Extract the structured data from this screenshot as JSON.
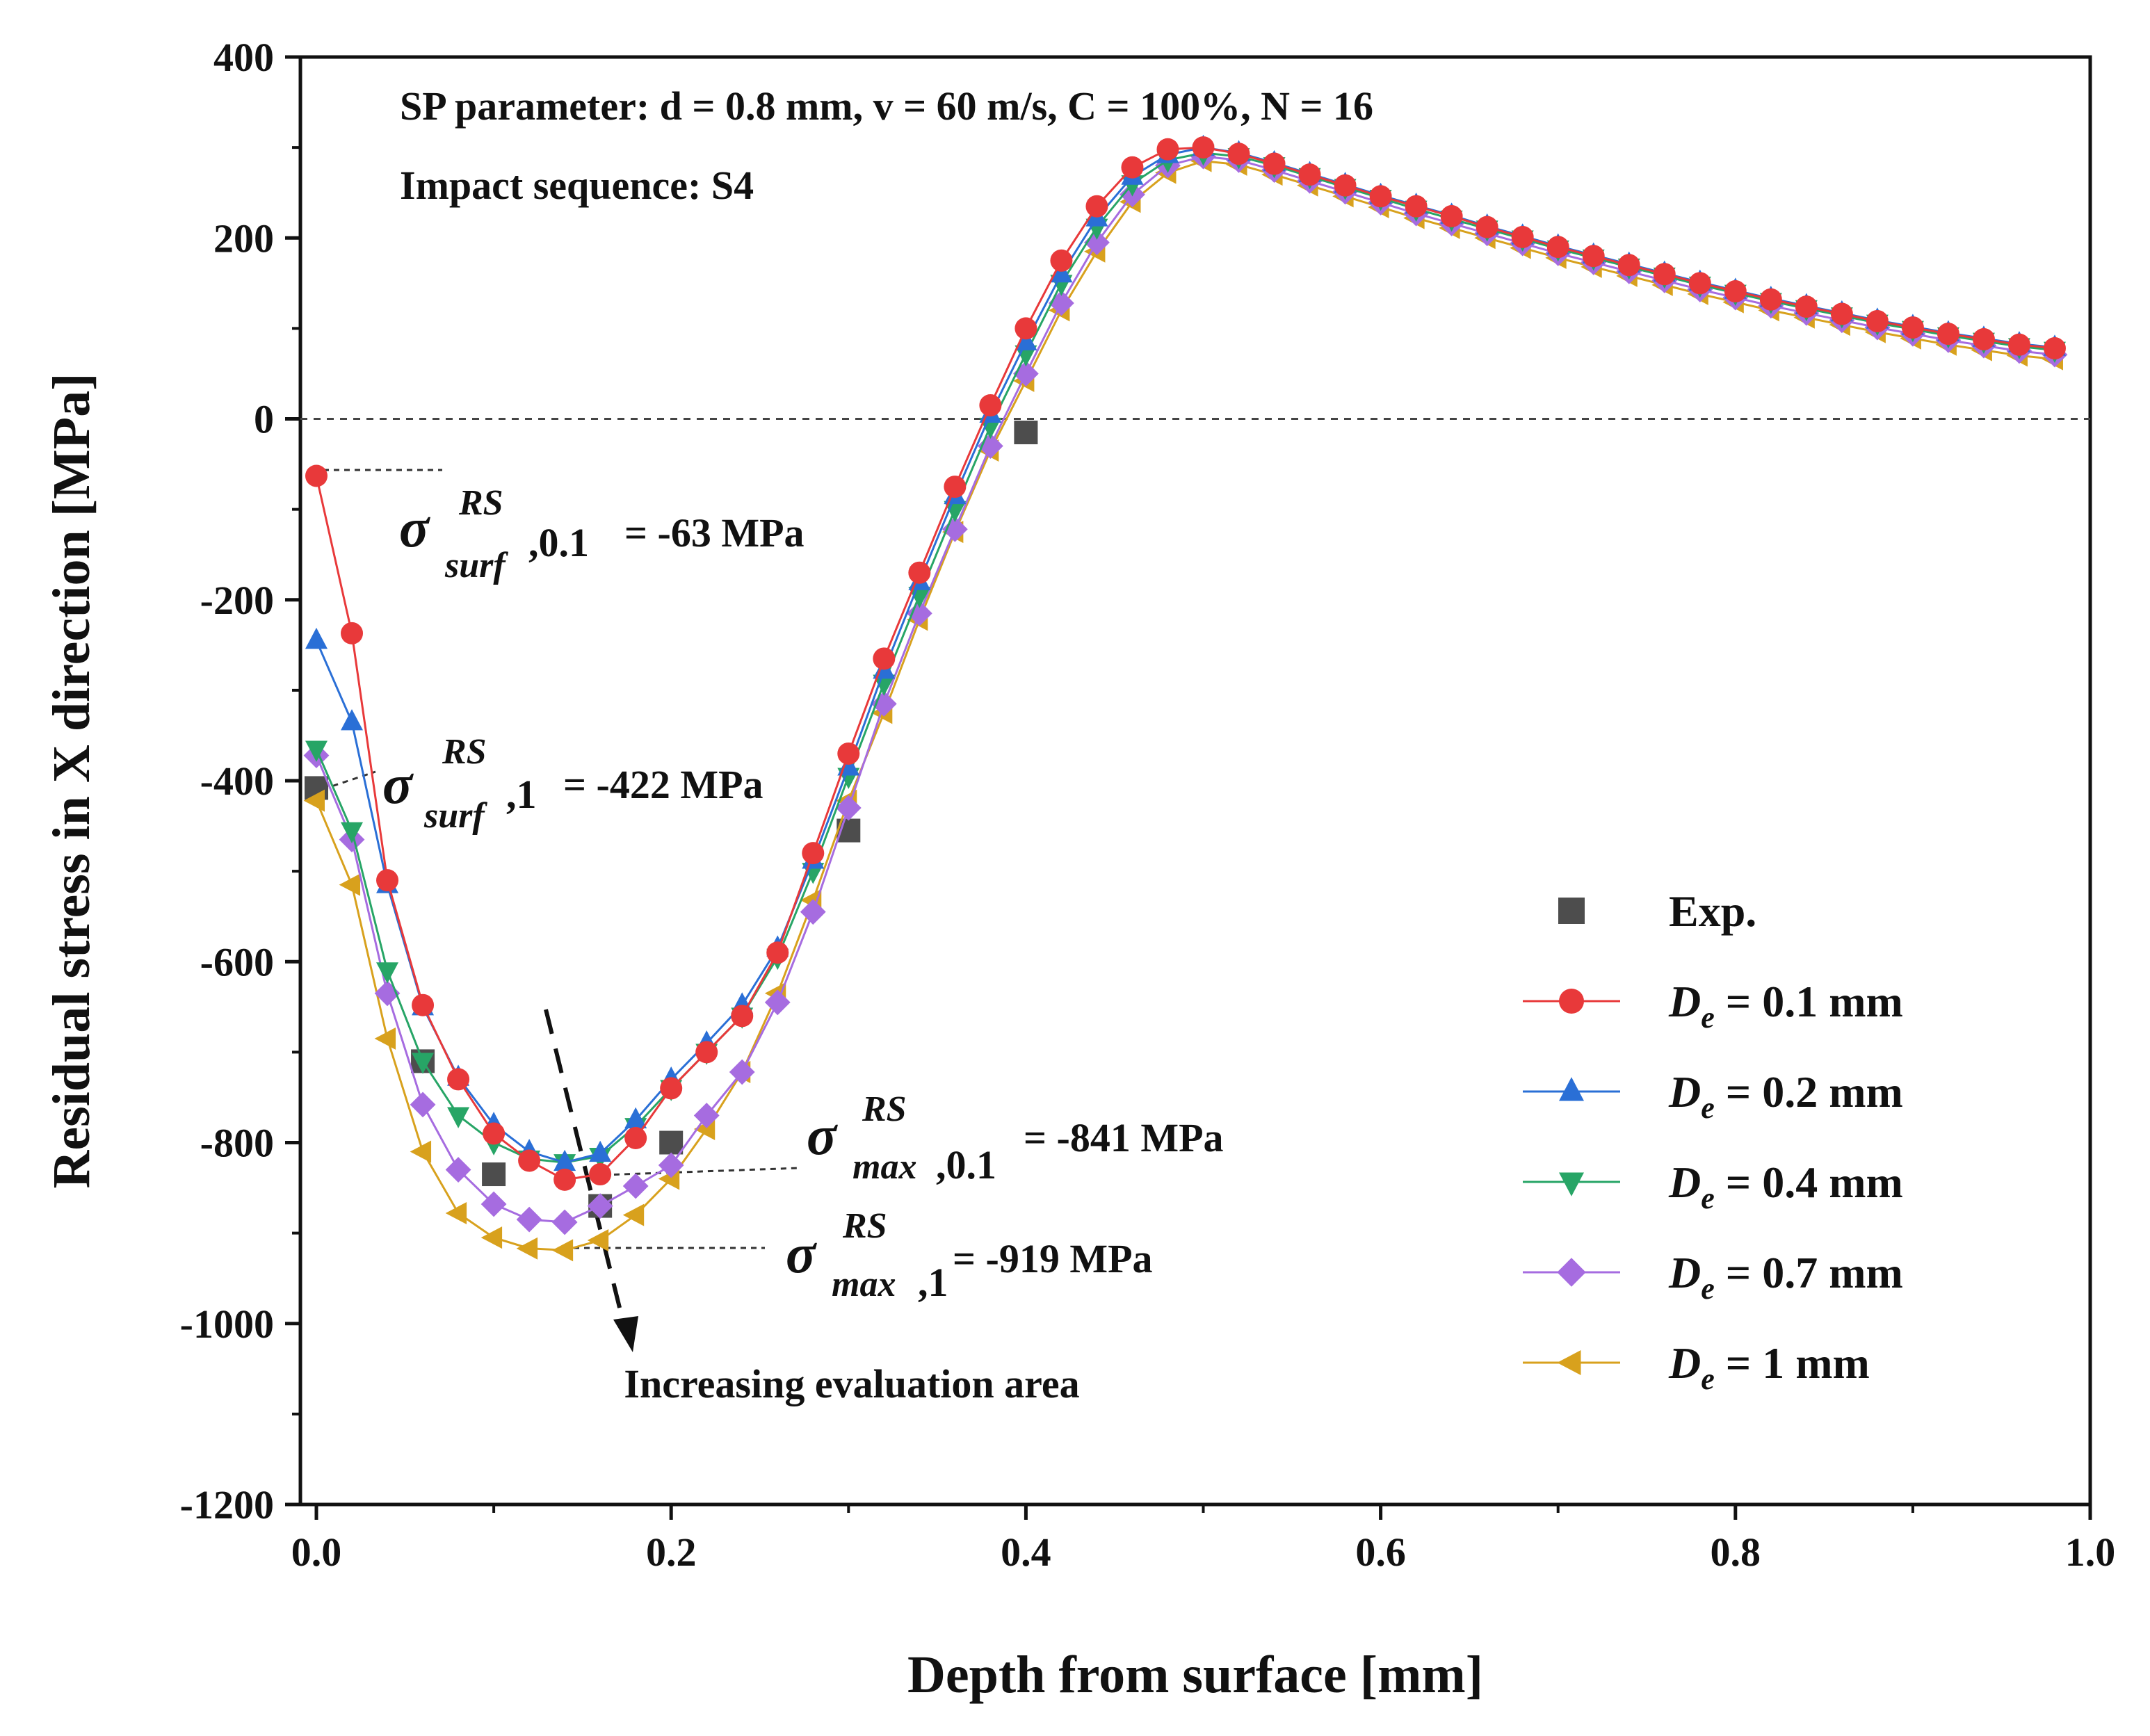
{
  "chart_data": {
    "type": "line",
    "xlabel": "Depth from surface [mm]",
    "ylabel": "Residual stress in X direction [MPa]",
    "xlim": [
      0,
      1.0
    ],
    "ylim": [
      -1200,
      400
    ],
    "xticks": [
      0.0,
      0.2,
      0.4,
      0.6,
      0.8,
      1.0
    ],
    "xtick_labels": [
      "0.0",
      "0.2",
      "0.4",
      "0.6",
      "0.8",
      "1.0"
    ],
    "yticks": [
      400,
      200,
      0,
      -200,
      -400,
      -600,
      -800,
      -1000,
      -1200
    ],
    "ytick_labels": [
      "400",
      "200",
      "0",
      "-200",
      "-400",
      "-600",
      "-800",
      "-1000",
      "-1200"
    ],
    "zero_line": true,
    "legend_position": "bottom-right",
    "title_lines": [
      "SP parameter: d = 0.8 mm, v = 60 m/s, C = 100%, N = 16",
      "Impact sequence: S4"
    ],
    "annotations": {
      "surf_01": {
        "sup": "RS",
        "sub": "surf",
        "sub_tail": ",0.1",
        "value": " = -63 MPa"
      },
      "surf_1": {
        "sup": "RS",
        "sub": "surf",
        "sub_tail": ",1",
        "value": " = -422 MPa"
      },
      "max_01": {
        "sup": "RS",
        "sub": "max",
        "sub_tail": ",0.1",
        "value": " = -841 MPa"
      },
      "max_1": {
        "sup": "RS",
        "sub": "max",
        "sub_tail": ",1",
        "value": " = -919 MPa"
      },
      "arrow_label": "Increasing evaluation area",
      "sigma_symbol": "σ"
    },
    "series": [
      {
        "name": "Exp.",
        "legend_label": "Exp.",
        "marker": "square",
        "color": "#4d4d4d",
        "line": false,
        "x": [
          0.0,
          0.06,
          0.1,
          0.16,
          0.2,
          0.3,
          0.4
        ],
        "y": [
          -408,
          -710,
          -835,
          -870,
          -800,
          -455,
          -15
        ]
      },
      {
        "name": "De = 0.1 mm",
        "legend_prefix": "D",
        "legend_sub": "e",
        "legend_value": " = 0.1 mm",
        "marker": "circle",
        "color": "#e8393a",
        "line": true,
        "x": [
          0.0,
          0.02,
          0.04,
          0.06,
          0.08,
          0.1,
          0.12,
          0.14,
          0.16,
          0.18,
          0.2,
          0.22,
          0.24,
          0.26,
          0.28,
          0.3,
          0.32,
          0.34,
          0.36,
          0.38,
          0.4,
          0.42,
          0.44,
          0.46,
          0.48,
          0.5,
          0.52,
          0.54,
          0.56,
          0.58,
          0.6,
          0.62,
          0.64,
          0.66,
          0.68,
          0.7,
          0.72,
          0.74,
          0.76,
          0.78,
          0.8,
          0.82,
          0.84,
          0.86,
          0.88,
          0.9,
          0.92,
          0.94,
          0.96,
          0.98
        ],
        "y": [
          -63,
          -237,
          -510,
          -648,
          -730,
          -790,
          -820,
          -841,
          -835,
          -795,
          -740,
          -700,
          -660,
          -590,
          -480,
          -370,
          -265,
          -170,
          -75,
          15,
          100,
          175,
          235,
          278,
          298,
          300,
          293,
          282,
          270,
          258,
          246,
          235,
          224,
          212,
          201,
          190,
          180,
          170,
          160,
          150,
          141,
          132,
          124,
          116,
          108,
          101,
          94,
          88,
          82,
          78
        ]
      },
      {
        "name": "De = 0.2 mm",
        "legend_prefix": "D",
        "legend_sub": "e",
        "legend_value": " = 0.2 mm",
        "marker": "triangle-up",
        "color": "#2a6fd6",
        "line": true,
        "x": [
          0.0,
          0.02,
          0.04,
          0.06,
          0.08,
          0.1,
          0.12,
          0.14,
          0.16,
          0.18,
          0.2,
          0.22,
          0.24,
          0.26,
          0.28,
          0.3,
          0.32,
          0.34,
          0.36,
          0.38,
          0.4,
          0.42,
          0.44,
          0.46,
          0.48,
          0.5,
          0.52,
          0.54,
          0.56,
          0.58,
          0.6,
          0.62,
          0.64,
          0.66,
          0.68,
          0.7,
          0.72,
          0.74,
          0.76,
          0.78,
          0.8,
          0.82,
          0.84,
          0.86,
          0.88,
          0.9,
          0.92,
          0.94,
          0.96,
          0.98
        ],
        "y": [
          -245,
          -335,
          -515,
          -650,
          -728,
          -780,
          -810,
          -822,
          -812,
          -775,
          -730,
          -690,
          -648,
          -585,
          -488,
          -385,
          -278,
          -180,
          -85,
          5,
          85,
          160,
          222,
          268,
          292,
          300,
          294,
          283,
          271,
          259,
          247,
          236,
          225,
          213,
          202,
          191,
          181,
          171,
          161,
          151,
          142,
          133,
          125,
          117,
          109,
          102,
          95,
          89,
          83,
          79
        ]
      },
      {
        "name": "De = 0.4 mm",
        "legend_prefix": "D",
        "legend_sub": "e",
        "legend_value": " = 0.4 mm",
        "marker": "triangle-down",
        "color": "#27a566",
        "line": true,
        "x": [
          0.0,
          0.02,
          0.04,
          0.06,
          0.08,
          0.1,
          0.12,
          0.14,
          0.16,
          0.18,
          0.2,
          0.22,
          0.24,
          0.26,
          0.28,
          0.3,
          0.32,
          0.34,
          0.36,
          0.38,
          0.4,
          0.42,
          0.44,
          0.46,
          0.48,
          0.5,
          0.52,
          0.54,
          0.56,
          0.58,
          0.6,
          0.62,
          0.64,
          0.66,
          0.68,
          0.7,
          0.72,
          0.74,
          0.76,
          0.78,
          0.8,
          0.82,
          0.84,
          0.86,
          0.88,
          0.9,
          0.92,
          0.94,
          0.96,
          0.98
        ],
        "y": [
          -365,
          -455,
          -610,
          -710,
          -770,
          -800,
          -818,
          -822,
          -815,
          -782,
          -740,
          -700,
          -660,
          -595,
          -500,
          -395,
          -292,
          -195,
          -100,
          -8,
          72,
          150,
          212,
          260,
          286,
          294,
          290,
          280,
          268,
          256,
          244,
          232,
          221,
          210,
          199,
          188,
          178,
          168,
          158,
          148,
          139,
          130,
          122,
          114,
          106,
          99,
          92,
          86,
          80,
          76
        ]
      },
      {
        "name": "De = 0.7 mm",
        "legend_prefix": "D",
        "legend_sub": "e",
        "legend_value": " = 0.7 mm",
        "marker": "diamond",
        "color": "#a66ce0",
        "line": true,
        "x": [
          0.0,
          0.02,
          0.04,
          0.06,
          0.08,
          0.1,
          0.12,
          0.14,
          0.16,
          0.18,
          0.2,
          0.22,
          0.24,
          0.26,
          0.28,
          0.3,
          0.32,
          0.34,
          0.36,
          0.38,
          0.4,
          0.42,
          0.44,
          0.46,
          0.48,
          0.5,
          0.52,
          0.54,
          0.56,
          0.58,
          0.6,
          0.62,
          0.64,
          0.66,
          0.68,
          0.7,
          0.72,
          0.74,
          0.76,
          0.78,
          0.8,
          0.82,
          0.84,
          0.86,
          0.88,
          0.9,
          0.92,
          0.94,
          0.96,
          0.98
        ],
        "y": [
          -372,
          -465,
          -635,
          -758,
          -830,
          -868,
          -885,
          -888,
          -870,
          -848,
          -825,
          -770,
          -722,
          -645,
          -545,
          -430,
          -315,
          -215,
          -122,
          -30,
          50,
          128,
          195,
          248,
          280,
          290,
          286,
          275,
          263,
          251,
          239,
          227,
          216,
          205,
          194,
          183,
          173,
          163,
          153,
          143,
          134,
          125,
          117,
          109,
          101,
          94,
          87,
          81,
          75,
          71
        ]
      },
      {
        "name": "De = 1 mm",
        "legend_prefix": "D",
        "legend_sub": "e",
        "legend_value": " = 1 mm",
        "marker": "triangle-left",
        "color": "#d8a11d",
        "line": true,
        "x": [
          0.0,
          0.02,
          0.04,
          0.06,
          0.08,
          0.1,
          0.12,
          0.14,
          0.16,
          0.18,
          0.2,
          0.22,
          0.24,
          0.26,
          0.28,
          0.3,
          0.32,
          0.34,
          0.36,
          0.38,
          0.4,
          0.42,
          0.44,
          0.46,
          0.48,
          0.5,
          0.52,
          0.54,
          0.56,
          0.58,
          0.6,
          0.62,
          0.64,
          0.66,
          0.68,
          0.7,
          0.72,
          0.74,
          0.76,
          0.78,
          0.8,
          0.82,
          0.84,
          0.86,
          0.88,
          0.9,
          0.92,
          0.94,
          0.96,
          0.98
        ],
        "y": [
          -422,
          -515,
          -685,
          -810,
          -878,
          -905,
          -917,
          -919,
          -908,
          -880,
          -840,
          -785,
          -722,
          -635,
          -532,
          -422,
          -325,
          -222,
          -125,
          -35,
          42,
          120,
          185,
          240,
          272,
          285,
          281,
          270,
          258,
          246,
          234,
          222,
          211,
          200,
          189,
          178,
          168,
          158,
          148,
          138,
          129,
          120,
          112,
          104,
          96,
          89,
          82,
          76,
          70,
          66
        ]
      }
    ]
  }
}
